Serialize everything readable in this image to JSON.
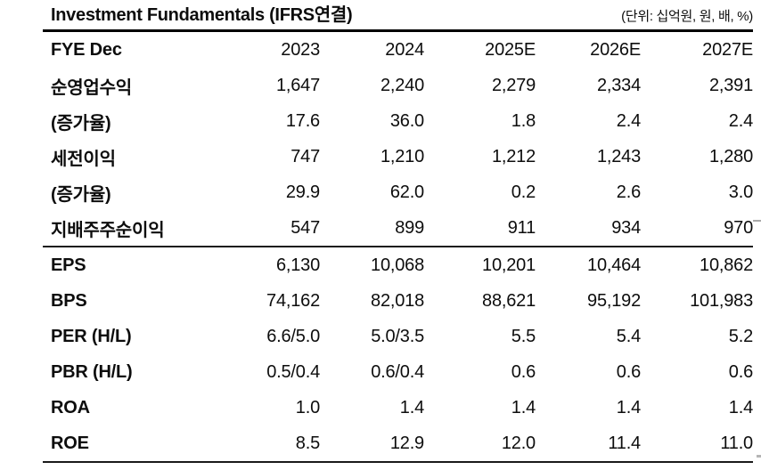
{
  "chart_data": {
    "type": "table",
    "title": "Investment Fundamentals (IFRS연결)",
    "unit_note": "(단위: 십억원, 원, 배, %)",
    "columns": [
      "FYE Dec",
      "2023",
      "2024",
      "2025E",
      "2026E",
      "2027E"
    ],
    "sections": [
      {
        "rows": [
          {
            "label": "순영업수익",
            "values": [
              "1,647",
              "2,240",
              "2,279",
              "2,334",
              "2,391"
            ]
          },
          {
            "label": "(증가율)",
            "values": [
              "17.6",
              "36.0",
              "1.8",
              "2.4",
              "2.4"
            ]
          },
          {
            "label": "세전이익",
            "values": [
              "747",
              "1,210",
              "1,212",
              "1,243",
              "1,280"
            ]
          },
          {
            "label": "(증가율)",
            "values": [
              "29.9",
              "62.0",
              "0.2",
              "2.6",
              "3.0"
            ]
          },
          {
            "label": "지배주주순이익",
            "values": [
              "547",
              "899",
              "911",
              "934",
              "970"
            ]
          }
        ]
      },
      {
        "rows": [
          {
            "label": "EPS",
            "values": [
              "6,130",
              "10,068",
              "10,201",
              "10,464",
              "10,862"
            ]
          },
          {
            "label": "BPS",
            "values": [
              "74,162",
              "82,018",
              "88,621",
              "95,192",
              "101,983"
            ]
          },
          {
            "label": "PER (H/L)",
            "values": [
              "6.6/5.0",
              "5.0/3.5",
              "5.5",
              "5.4",
              "5.2"
            ]
          },
          {
            "label": "PBR (H/L)",
            "values": [
              "0.5/0.4",
              "0.6/0.4",
              "0.6",
              "0.6",
              "0.6"
            ]
          },
          {
            "label": "ROA",
            "values": [
              "1.0",
              "1.4",
              "1.4",
              "1.4",
              "1.4"
            ]
          },
          {
            "label": "ROE",
            "values": [
              "8.5",
              "12.9",
              "12.0",
              "11.4",
              "11.0"
            ]
          }
        ]
      }
    ]
  }
}
